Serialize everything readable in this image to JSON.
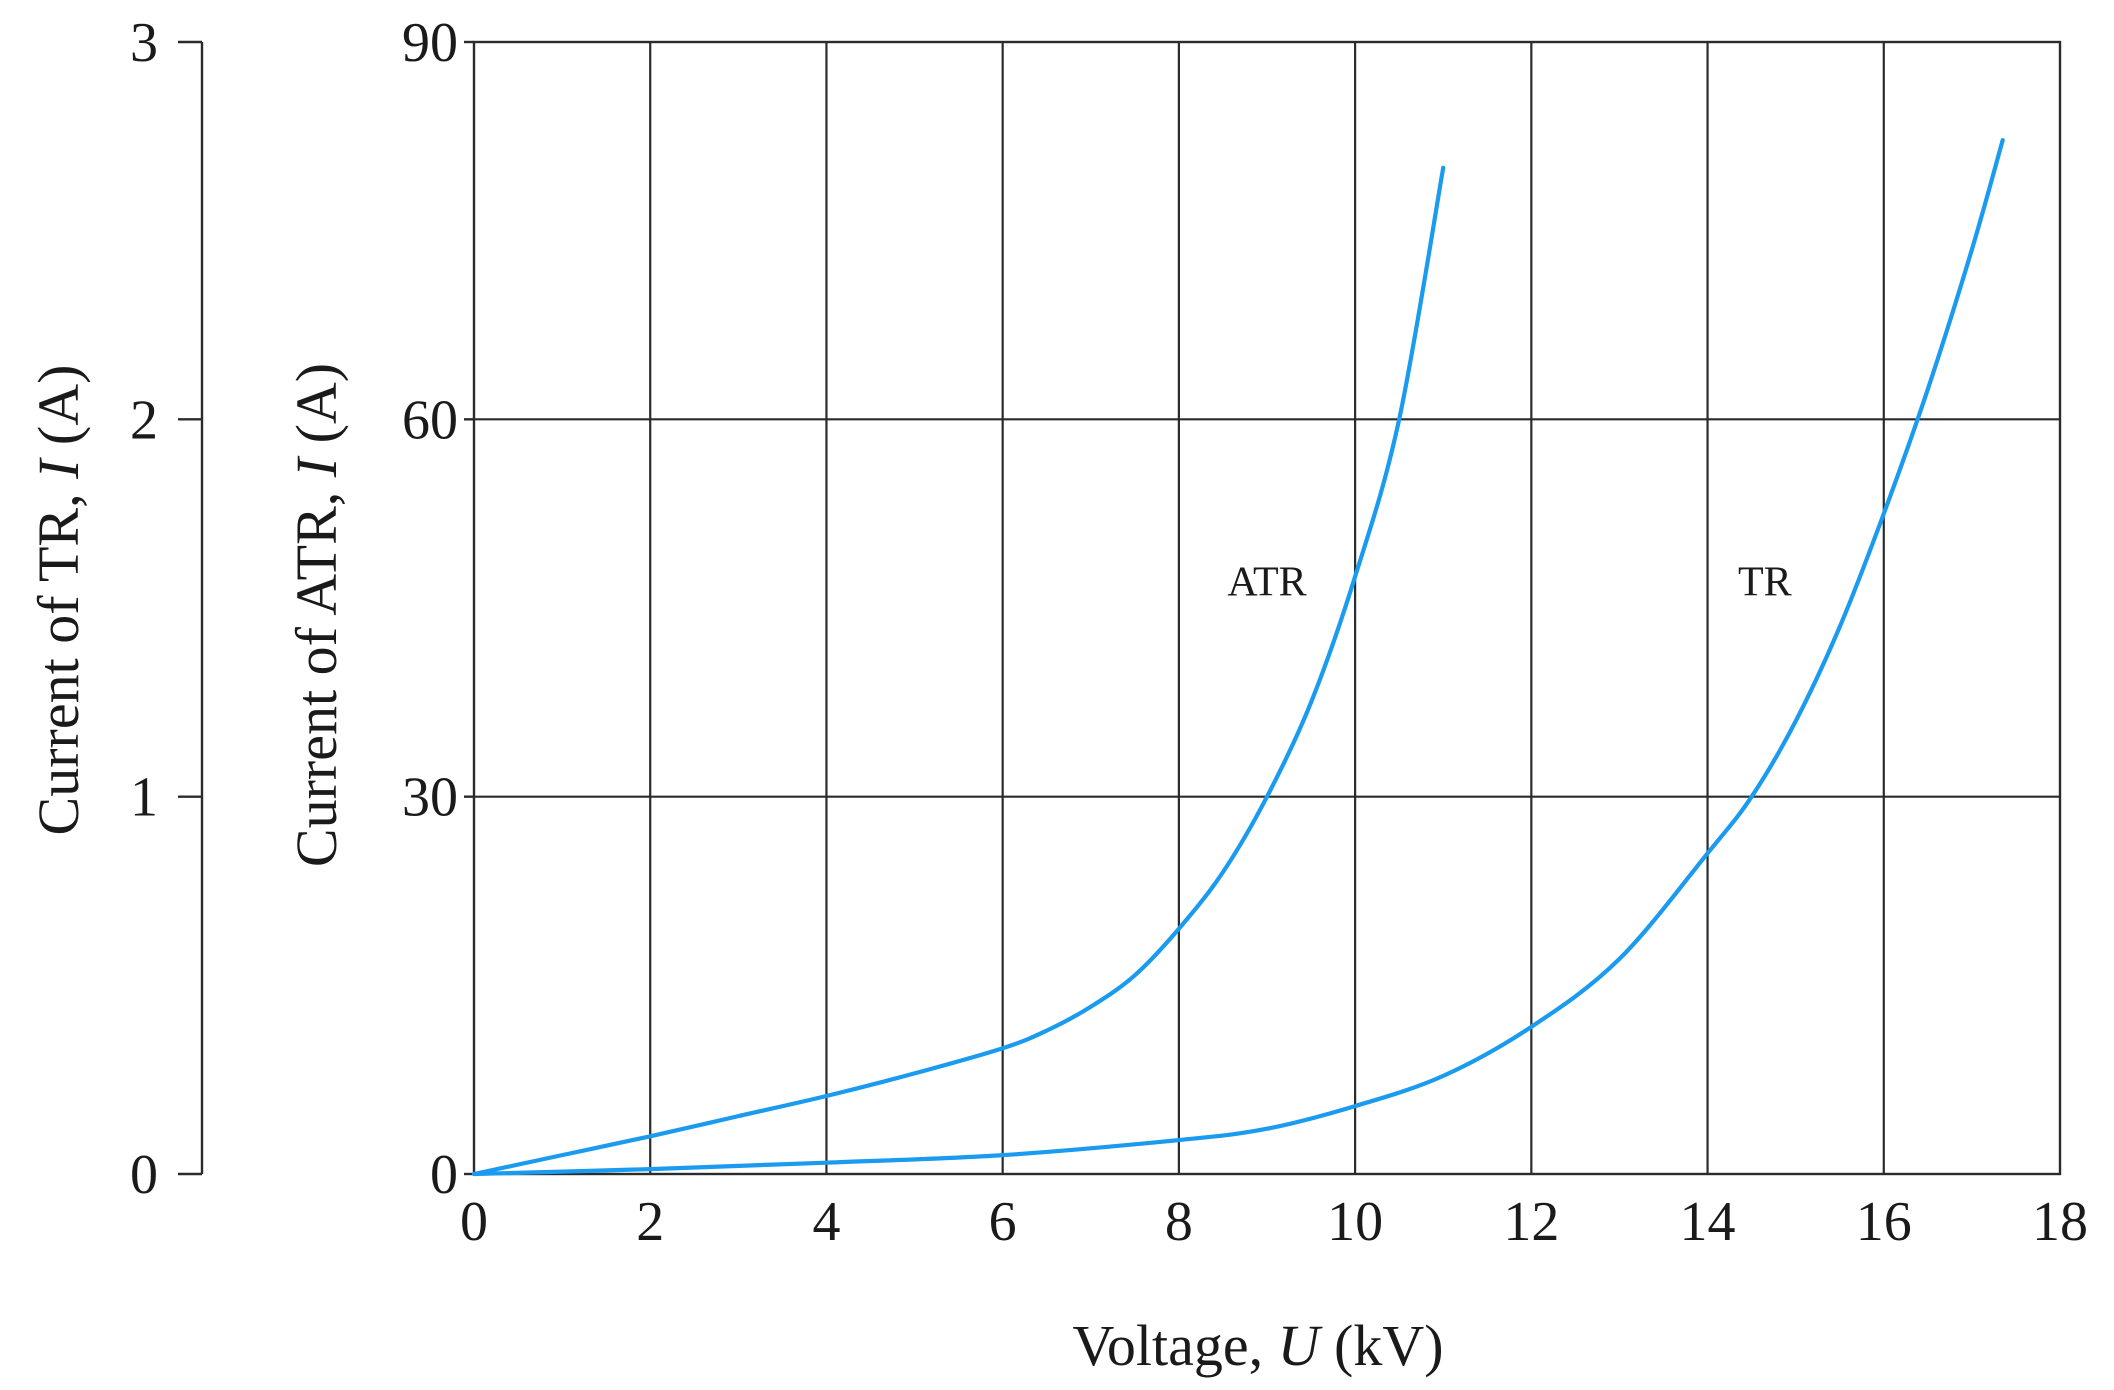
{
  "chart_data": {
    "type": "line",
    "title": "",
    "xlabel": {
      "prefix": "Voltage, ",
      "symbol": "U",
      "suffix": " (kV)"
    },
    "ylabel_left": {
      "prefix": "Current of TR, ",
      "symbol": "I",
      "suffix": " (A)"
    },
    "ylabel_right": {
      "prefix": "Current of ATR, ",
      "symbol": "I",
      "suffix": " (A)"
    },
    "xlim": [
      0,
      18
    ],
    "ylim_left": [
      0,
      3
    ],
    "ylim_right": [
      0,
      90
    ],
    "xticks": [
      "0",
      "2",
      "4",
      "6",
      "8",
      "10",
      "12",
      "14",
      "16",
      "18"
    ],
    "yticks_left": [
      "0",
      "1",
      "2",
      "3"
    ],
    "yticks_right": [
      "0",
      "30",
      "60",
      "90"
    ],
    "grid": true,
    "line_color": "#1a9bef",
    "series": [
      {
        "name": "ATR",
        "axis": "right",
        "x": [
          0,
          1,
          2,
          3,
          4,
          5,
          6,
          6.5,
          7,
          7.5,
          8,
          8.5,
          9,
          9.5,
          10,
          10.5,
          11
        ],
        "y": [
          0,
          1.5,
          3,
          4.6,
          6.2,
          8,
          10,
          11.4,
          13.3,
          15.8,
          19.5,
          24,
          30,
          37.5,
          47.5,
          60,
          80
        ]
      },
      {
        "name": "TR",
        "axis": "left",
        "x": [
          0,
          2,
          4,
          6,
          8,
          9,
          10,
          11,
          12,
          13,
          14,
          14.5,
          15,
          15.5,
          16,
          16.5,
          17,
          17.35
        ],
        "y": [
          0,
          0.013,
          0.03,
          0.05,
          0.09,
          0.12,
          0.18,
          0.26,
          0.39,
          0.57,
          0.85,
          1.0,
          1.2,
          1.45,
          1.75,
          2.08,
          2.45,
          2.74
        ]
      }
    ]
  }
}
